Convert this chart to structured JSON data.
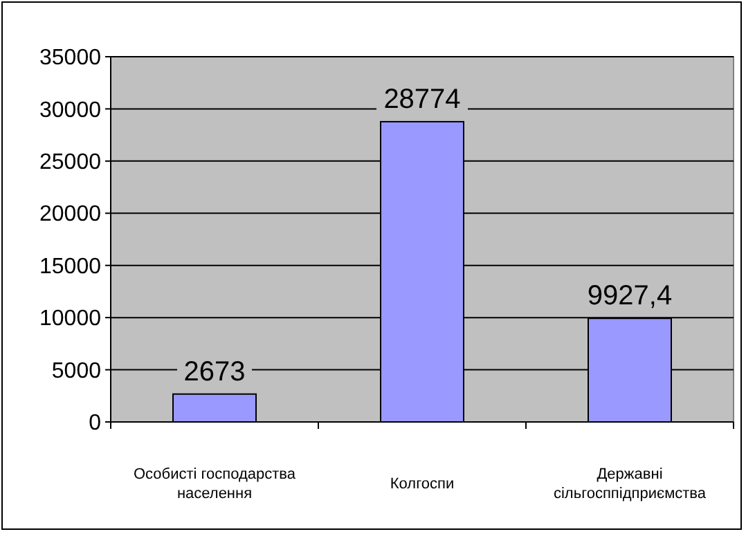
{
  "chart_data": {
    "type": "bar",
    "categories": [
      "Особисті господарства населення",
      "Колгоспи",
      "Державні сільгосппідприємства"
    ],
    "values": [
      2673,
      28774,
      9927.4
    ],
    "value_labels": [
      "2673",
      "28774",
      "9927,4"
    ],
    "color": "#9999ff",
    "ylim": [
      0,
      35000
    ],
    "yticks": [
      0,
      5000,
      10000,
      15000,
      20000,
      25000,
      30000,
      35000
    ],
    "grid": "y"
  }
}
